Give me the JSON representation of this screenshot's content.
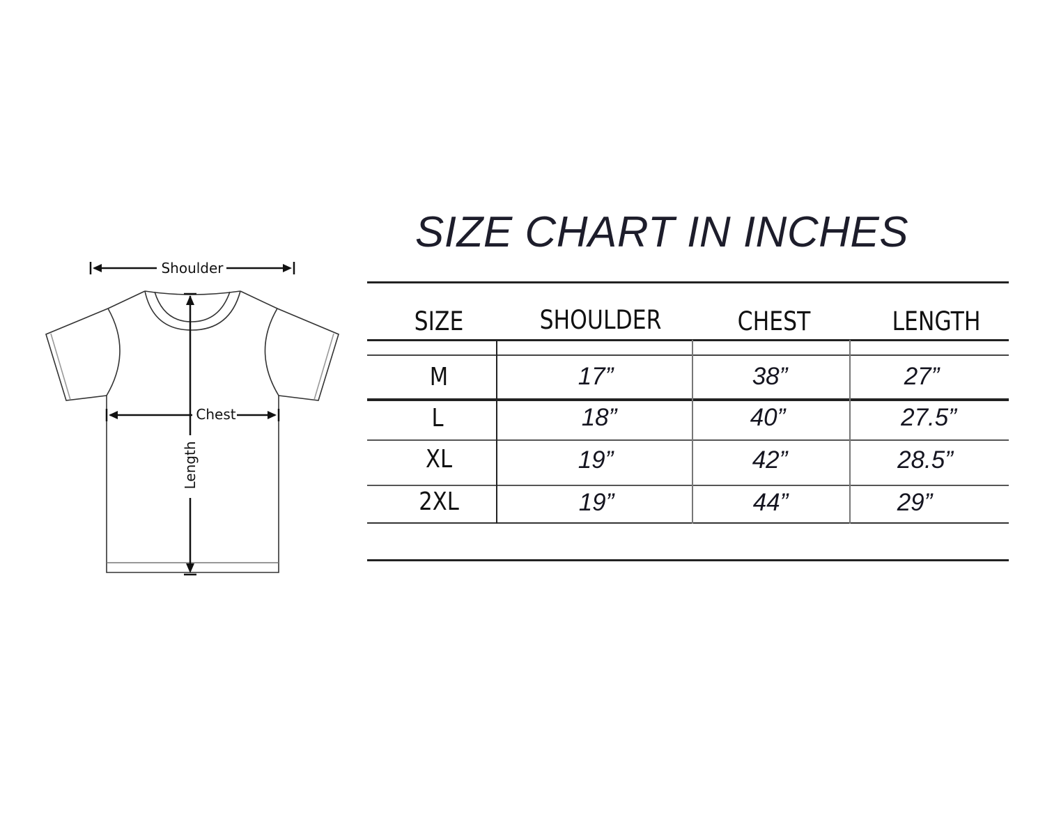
{
  "title": "SIZE CHART IN INCHES",
  "diagram": {
    "shoulder_label": "Shoulder",
    "chest_label": "Chest",
    "length_label": "Length"
  },
  "table": {
    "headers": [
      "SIZE",
      "SHOULDER",
      "CHEST",
      "LENGTH"
    ],
    "rows": [
      {
        "size": "M",
        "shoulder": "17”",
        "chest": "38”",
        "length": "27”"
      },
      {
        "size": "L",
        "shoulder": "18”",
        "chest": "40”",
        "length": "27.5”"
      },
      {
        "size": "XL",
        "shoulder": "19”",
        "chest": "42”",
        "length": "28.5”"
      },
      {
        "size": "2XL",
        "shoulder": "19”",
        "chest": "44”",
        "length": "29”"
      }
    ]
  }
}
